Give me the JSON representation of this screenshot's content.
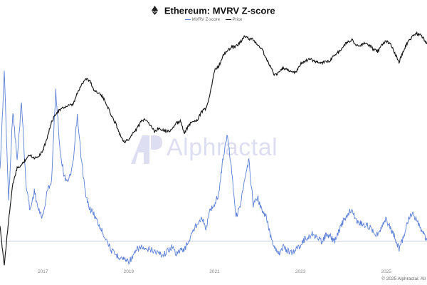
{
  "header": {
    "title": "Ethereum: MVRV Z-score",
    "icon": "ethereum-icon"
  },
  "legend": {
    "items": [
      {
        "label": "MVRV Z-score",
        "color": "#5b7fd6"
      },
      {
        "label": "Price",
        "color": "#111111"
      }
    ]
  },
  "watermark": {
    "text": "Alphractal",
    "icon": "alphractal-logo"
  },
  "credit": "© 2025 Alphractal. All",
  "colors": {
    "zscore": "#5b7fd6",
    "price": "#111111",
    "zero_line": "#b8c2d8"
  },
  "chart_data": {
    "type": "line",
    "title": "Ethereum: MVRV Z-score",
    "xlabel": "",
    "ylabel": "",
    "x_ticks": [
      "2017",
      "2019",
      "2021",
      "2023",
      "2025"
    ],
    "x": [
      2016.0,
      2016.1,
      2016.2,
      2016.3,
      2016.4,
      2016.5,
      2016.6,
      2016.7,
      2016.8,
      2016.9,
      2017.0,
      2017.1,
      2017.2,
      2017.3,
      2017.4,
      2017.5,
      2017.6,
      2017.7,
      2017.8,
      2017.9,
      2018.0,
      2018.1,
      2018.2,
      2018.3,
      2018.4,
      2018.5,
      2018.6,
      2018.7,
      2018.8,
      2018.9,
      2019.0,
      2019.1,
      2019.2,
      2019.3,
      2019.4,
      2019.5,
      2019.6,
      2019.7,
      2019.8,
      2019.9,
      2020.0,
      2020.1,
      2020.2,
      2020.3,
      2020.4,
      2020.5,
      2020.6,
      2020.7,
      2020.8,
      2020.9,
      2021.0,
      2021.1,
      2021.2,
      2021.3,
      2021.4,
      2021.5,
      2021.6,
      2021.7,
      2021.8,
      2021.9,
      2022.0,
      2022.1,
      2022.2,
      2022.3,
      2022.4,
      2022.5,
      2022.6,
      2022.7,
      2022.8,
      2022.9,
      2023.0,
      2023.1,
      2023.2,
      2023.3,
      2023.4,
      2023.5,
      2023.6,
      2023.7,
      2023.8,
      2023.9,
      2024.0,
      2024.1,
      2024.2,
      2024.3,
      2024.4,
      2024.5,
      2024.6,
      2024.7,
      2024.8,
      2024.9,
      2025.0,
      2025.1,
      2025.2,
      2025.3,
      2025.4,
      2025.5,
      2025.6,
      2025.7,
      2025.8,
      2025.9,
      2025.95
    ],
    "series": [
      {
        "name": "MVRV Z-score",
        "values": [
          3.5,
          8.5,
          2.0,
          6.5,
          4.0,
          7.0,
          3.0,
          1.5,
          2.5,
          1.5,
          1.2,
          2.5,
          3.0,
          7.5,
          4.5,
          3.2,
          3.0,
          3.8,
          6.2,
          4.0,
          2.2,
          1.6,
          1.3,
          0.8,
          0.4,
          0.0,
          -0.5,
          -0.7,
          -0.8,
          -0.9,
          -1.0,
          -0.8,
          -0.4,
          -0.3,
          -0.5,
          -0.4,
          -0.5,
          -0.6,
          -0.7,
          -0.5,
          -0.3,
          -0.6,
          -0.5,
          -0.4,
          0.0,
          0.5,
          0.9,
          1.2,
          0.6,
          1.6,
          1.8,
          2.4,
          4.2,
          5.3,
          3.5,
          1.2,
          1.8,
          3.0,
          4.0,
          1.8,
          2.2,
          1.5,
          1.2,
          0.3,
          -0.3,
          -0.6,
          -0.3,
          -0.5,
          -0.6,
          -0.4,
          -0.2,
          0.1,
          0.2,
          0.4,
          0.1,
          0.0,
          0.3,
          0.2,
          0.0,
          0.5,
          1.0,
          1.3,
          1.6,
          1.0,
          0.9,
          0.8,
          0.7,
          0.5,
          0.3,
          0.8,
          1.1,
          0.6,
          0.2,
          -0.4,
          0.2,
          1.0,
          1.4,
          1.0,
          0.6,
          0.2,
          0.1
        ]
      },
      {
        "name": "Price",
        "values": [
          7,
          2,
          9,
          30,
          50,
          55,
          68,
          78,
          70,
          75,
          90,
          140,
          230,
          310,
          350,
          380,
          400,
          410,
          600,
          800,
          1000,
          900,
          650,
          620,
          520,
          400,
          280,
          220,
          150,
          120,
          130,
          160,
          190,
          240,
          260,
          210,
          170,
          190,
          180,
          170,
          180,
          220,
          240,
          160,
          210,
          240,
          250,
          330,
          360,
          600,
          1300,
          1500,
          2100,
          2500,
          2800,
          2900,
          3300,
          4000,
          3700,
          3600,
          3000,
          2700,
          1900,
          1500,
          1100,
          1200,
          1400,
          1300,
          1250,
          1200,
          1600,
          1700,
          1900,
          1800,
          1700,
          1650,
          1750,
          1800,
          2200,
          2400,
          2900,
          3300,
          3600,
          3000,
          2900,
          3200,
          3000,
          2600,
          2400,
          3100,
          3400,
          3100,
          2300,
          1700,
          2500,
          3300,
          3900,
          4400,
          4200,
          3500,
          3100
        ]
      }
    ],
    "zscore_range": [
      -1.2,
      10.6
    ],
    "price_log_scale": true,
    "price_range": [
      2,
      5200
    ],
    "grid": false,
    "legend_placement": "top-center"
  }
}
